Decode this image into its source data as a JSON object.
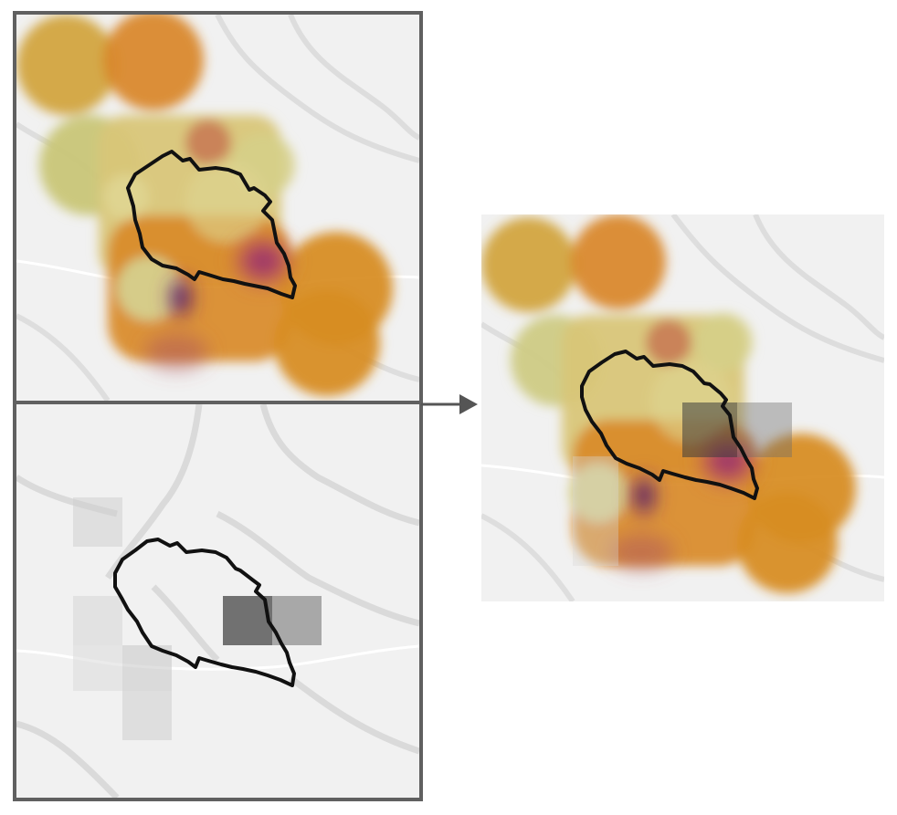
{
  "figure": {
    "panels": [
      {
        "id": "top-left",
        "content": "continuous-heatmap",
        "basemap": "terrain-grey",
        "overlay": "catchment-outline"
      },
      {
        "id": "bottom-left",
        "content": "grey-grid-cells",
        "basemap": "terrain-grey",
        "overlay": "catchment-outline"
      },
      {
        "id": "right",
        "content": "heatmap-with-grid-cells",
        "basemap": "terrain-grey",
        "overlay": "catchment-outline"
      }
    ],
    "arrow": {
      "direction": "right",
      "icon": "arrow-right-icon"
    }
  },
  "colors": {
    "frame": "#606060",
    "outline": "#111111",
    "basemap": "#f0f0f0",
    "terrain": "#d8d8d8",
    "road": "#ffffff",
    "heat_low": "#d6d38a",
    "heat_mid": "#d98b1f",
    "heat_high": "#8a2a6a",
    "heat_peak": "#2a0a5e",
    "grid_dark": "#5a5a5a",
    "grid_light": "#d4d4d4"
  }
}
